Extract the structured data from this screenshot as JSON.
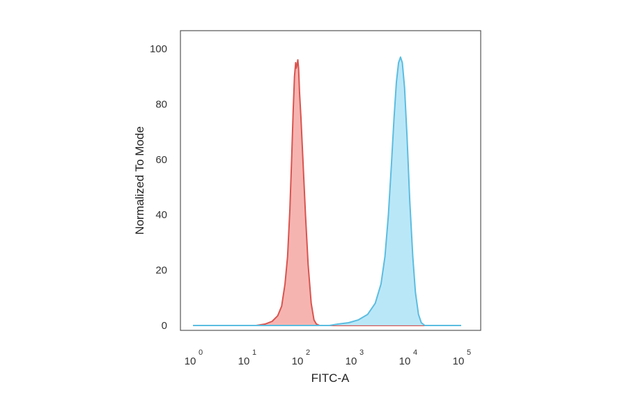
{
  "chart_data": {
    "type": "area",
    "title": "",
    "xlabel": "FITC-A",
    "ylabel": "Normalized To Mode",
    "x_scale": "log",
    "xlim": [
      1,
      100000
    ],
    "ylim": [
      0,
      100
    ],
    "y_ticks": [
      "0",
      "20",
      "40",
      "60",
      "80",
      "100"
    ],
    "x_ticks": [
      {
        "base": "10",
        "exp": "0",
        "value": 1
      },
      {
        "base": "10",
        "exp": "1",
        "value": 10
      },
      {
        "base": "10",
        "exp": "2",
        "value": 100
      },
      {
        "base": "10",
        "exp": "3",
        "value": 1000
      },
      {
        "base": "10",
        "exp": "4",
        "value": 10000
      },
      {
        "base": "10",
        "exp": "5",
        "value": 100000
      }
    ],
    "grid": false,
    "legend": "none",
    "series": [
      {
        "stroke": "#d9544f",
        "fill": "#f4a7a3",
        "points": [
          [
            1,
            0
          ],
          [
            15,
            0
          ],
          [
            22,
            0.5
          ],
          [
            30,
            1.5
          ],
          [
            38,
            3.5
          ],
          [
            45,
            7
          ],
          [
            52,
            15
          ],
          [
            58,
            25
          ],
          [
            64,
            42
          ],
          [
            69,
            60
          ],
          [
            74,
            78
          ],
          [
            78,
            90
          ],
          [
            82,
            95
          ],
          [
            84,
            93
          ],
          [
            87,
            94
          ],
          [
            90,
            96
          ],
          [
            93,
            93
          ],
          [
            97,
            84
          ],
          [
            103,
            75
          ],
          [
            112,
            60
          ],
          [
            125,
            40
          ],
          [
            140,
            22
          ],
          [
            160,
            8
          ],
          [
            180,
            2
          ],
          [
            200,
            0.5
          ],
          [
            230,
            0
          ],
          [
            100000,
            0
          ]
        ]
      },
      {
        "stroke": "#5bbde0",
        "fill": "#aee3f7",
        "points": [
          [
            1,
            0
          ],
          [
            350,
            0
          ],
          [
            500,
            0.5
          ],
          [
            800,
            1
          ],
          [
            1200,
            2
          ],
          [
            1800,
            4
          ],
          [
            2500,
            8
          ],
          [
            3200,
            15
          ],
          [
            3800,
            25
          ],
          [
            4400,
            40
          ],
          [
            5000,
            58
          ],
          [
            5600,
            75
          ],
          [
            6200,
            88
          ],
          [
            6800,
            95
          ],
          [
            7400,
            97
          ],
          [
            8000,
            95
          ],
          [
            8800,
            86
          ],
          [
            9800,
            68
          ],
          [
            11000,
            45
          ],
          [
            12500,
            25
          ],
          [
            14000,
            12
          ],
          [
            16000,
            4
          ],
          [
            18000,
            1
          ],
          [
            21000,
            0
          ],
          [
            100000,
            0
          ]
        ]
      }
    ]
  }
}
